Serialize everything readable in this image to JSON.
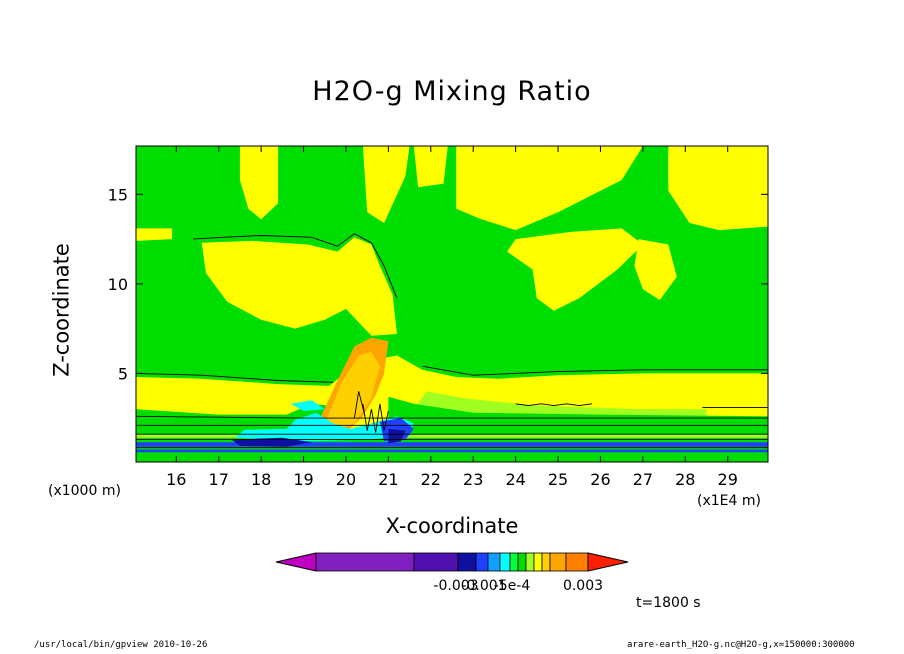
{
  "chart_data": {
    "type": "heatmap",
    "title": "H2O-g Mixing Ratio",
    "xlabel": "X-coordinate",
    "ylabel": "Z-coordinate",
    "x_unit_label": "(x1E4 m)",
    "z_unit_label": "(x1000 m)",
    "x_ticks": [
      16,
      17,
      18,
      19,
      20,
      21,
      22,
      23,
      24,
      25,
      26,
      27,
      28,
      29
    ],
    "z_ticks": [
      5,
      10,
      15
    ],
    "xlim": [
      15.05,
      29.95
    ],
    "zlim": [
      0.05,
      17.7
    ],
    "colorbar": {
      "labels": [
        "-0.003",
        "-0.001",
        "-5e-4",
        "0.003"
      ],
      "colors": [
        "#c000c0",
        "#8020c0",
        "#5010b0",
        "#1010a0",
        "#2040ff",
        "#10a0ff",
        "#00ffff",
        "#00ff40",
        "#00dd00",
        "#a0ff20",
        "#ffff00",
        "#ffd000",
        "#ffa500",
        "#ff8000",
        "#ff2000"
      ]
    },
    "time_label": "t=1800 s",
    "regions": [
      {
        "color": "#00dd00",
        "polygons": [
          [
            [
              15.05,
              0.05
            ],
            [
              29.95,
              0.05
            ],
            [
              29.95,
              17.7
            ],
            [
              15.05,
              17.7
            ]
          ]
        ]
      },
      {
        "color": "#ffff00",
        "polygons": [
          [
            [
              17.5,
              17.7
            ],
            [
              18.4,
              17.7
            ],
            [
              18.4,
              14.5
            ],
            [
              18.0,
              13.6
            ],
            [
              17.7,
              14.2
            ],
            [
              17.5,
              15.8
            ]
          ],
          [
            [
              20.4,
              17.7
            ],
            [
              21.5,
              17.7
            ],
            [
              21.4,
              16.0
            ],
            [
              20.9,
              13.4
            ],
            [
              20.5,
              14.0
            ]
          ],
          [
            [
              21.6,
              17.7
            ],
            [
              22.4,
              17.7
            ],
            [
              22.3,
              15.6
            ],
            [
              21.7,
              15.4
            ]
          ],
          [
            [
              22.6,
              17.7
            ],
            [
              27.0,
              17.7
            ],
            [
              26.5,
              15.8
            ],
            [
              25.0,
              14.0
            ],
            [
              24.0,
              13.0
            ],
            [
              23.2,
              13.6
            ],
            [
              22.6,
              14.2
            ]
          ],
          [
            [
              27.6,
              17.7
            ],
            [
              29.95,
              17.7
            ],
            [
              29.95,
              13.2
            ],
            [
              28.8,
              13.0
            ],
            [
              28.1,
              13.4
            ],
            [
              27.6,
              15.2
            ]
          ],
          [
            [
              24.0,
              12.5
            ],
            [
              25.3,
              12.9
            ],
            [
              26.5,
              13.1
            ],
            [
              27.0,
              12.2
            ],
            [
              26.4,
              10.8
            ],
            [
              25.5,
              9.2
            ],
            [
              24.9,
              8.5
            ],
            [
              24.5,
              9.2
            ],
            [
              24.4,
              10.8
            ],
            [
              23.8,
              11.8
            ]
          ],
          [
            [
              26.9,
              12.5
            ],
            [
              27.6,
              12.2
            ],
            [
              27.8,
              10.4
            ],
            [
              27.4,
              9.1
            ],
            [
              27.0,
              9.7
            ],
            [
              26.8,
              11.0
            ]
          ],
          [
            [
              15.05,
              13.1
            ],
            [
              15.9,
              13.1
            ],
            [
              15.9,
              12.5
            ],
            [
              15.05,
              12.4
            ]
          ],
          [
            [
              16.6,
              12.3
            ],
            [
              17.8,
              12.4
            ],
            [
              19.1,
              12.2
            ],
            [
              19.8,
              11.8
            ],
            [
              20.2,
              12.6
            ],
            [
              20.6,
              12.2
            ],
            [
              20.8,
              11.0
            ],
            [
              21.1,
              9.4
            ],
            [
              21.2,
              7.2
            ],
            [
              20.6,
              7.1
            ],
            [
              20.0,
              8.6
            ],
            [
              19.5,
              8.0
            ],
            [
              18.8,
              7.5
            ],
            [
              18.0,
              8.0
            ],
            [
              17.2,
              9.0
            ],
            [
              16.7,
              10.6
            ]
          ],
          [
            [
              15.05,
              4.8
            ],
            [
              16.6,
              4.7
            ],
            [
              18.4,
              4.4
            ],
            [
              19.6,
              4.3
            ],
            [
              20.3,
              5.6
            ],
            [
              21.2,
              6.0
            ],
            [
              21.8,
              5.2
            ],
            [
              22.6,
              4.8
            ],
            [
              23.6,
              4.7
            ],
            [
              25.0,
              4.9
            ],
            [
              27.0,
              5.0
            ],
            [
              29.95,
              5.0
            ],
            [
              29.95,
              1.8
            ],
            [
              15.05,
              1.8
            ]
          ]
        ]
      },
      {
        "color": "#a0ff20",
        "polygons": [
          [
            [
              15.05,
              1.8
            ],
            [
              29.95,
              1.8
            ],
            [
              29.95,
              1.4
            ],
            [
              15.05,
              1.4
            ]
          ],
          [
            [
              21.9,
              4.0
            ],
            [
              22.8,
              3.6
            ],
            [
              24.5,
              3.2
            ],
            [
              27.0,
              3.0
            ],
            [
              28.5,
              3.0
            ],
            [
              28.5,
              2.4
            ],
            [
              24.5,
              2.5
            ],
            [
              22.4,
              2.6
            ],
            [
              21.6,
              3.0
            ]
          ]
        ]
      },
      {
        "color": "#00dd00",
        "polygons": [
          [
            [
              15.05,
              3.0
            ],
            [
              17.0,
              2.7
            ],
            [
              18.6,
              2.7
            ],
            [
              19.2,
              3.3
            ],
            [
              19.6,
              3.2
            ],
            [
              19.4,
              2.3
            ],
            [
              19.0,
              1.6
            ],
            [
              15.05,
              1.6
            ]
          ],
          [
            [
              21.0,
              3.7
            ],
            [
              21.6,
              3.3
            ],
            [
              23.0,
              2.8
            ],
            [
              26.0,
              2.7
            ],
            [
              29.95,
              2.6
            ],
            [
              29.95,
              1.6
            ],
            [
              21.0,
              1.6
            ]
          ]
        ]
      },
      {
        "color": "#ffa500",
        "polygons": [
          [
            [
              19.2,
              1.5
            ],
            [
              19.8,
              4.6
            ],
            [
              20.2,
              6.5
            ],
            [
              20.6,
              7.0
            ],
            [
              21.0,
              6.8
            ],
            [
              20.9,
              5.0
            ],
            [
              20.7,
              3.8
            ],
            [
              20.4,
              2.6
            ],
            [
              20.0,
              1.7
            ]
          ]
        ]
      },
      {
        "color": "#ffd000",
        "polygons": [
          [
            [
              19.4,
              1.6
            ],
            [
              19.9,
              4.5
            ],
            [
              20.3,
              6.0
            ],
            [
              20.6,
              6.2
            ],
            [
              20.8,
              5.4
            ],
            [
              20.6,
              3.6
            ],
            [
              20.2,
              2.2
            ]
          ]
        ]
      },
      {
        "color": "#00ffff",
        "polygons": [
          [
            [
              17.4,
              1.4
            ],
            [
              17.6,
              1.85
            ],
            [
              18.6,
              1.9
            ],
            [
              18.8,
              2.4
            ],
            [
              19.3,
              2.8
            ],
            [
              19.7,
              2.2
            ],
            [
              20.1,
              1.9
            ],
            [
              20.6,
              2.2
            ],
            [
              21.2,
              2.6
            ],
            [
              21.6,
              2.2
            ],
            [
              21.5,
              1.5
            ],
            [
              20.5,
              1.3
            ],
            [
              19.0,
              1.2
            ]
          ],
          [
            [
              18.7,
              3.3
            ],
            [
              19.2,
              3.5
            ],
            [
              19.5,
              3.0
            ],
            [
              19.0,
              2.9
            ]
          ]
        ]
      },
      {
        "color": "#2040ff",
        "polygons": [
          [
            [
              15.05,
              1.15
            ],
            [
              29.95,
              1.15
            ],
            [
              29.95,
              0.9
            ],
            [
              15.05,
              0.9
            ]
          ],
          [
            [
              20.8,
              2.3
            ],
            [
              21.3,
              2.5
            ],
            [
              21.6,
              1.9
            ],
            [
              21.4,
              1.3
            ],
            [
              20.9,
              1.2
            ]
          ]
        ]
      },
      {
        "color": "#1010a0",
        "polygons": [
          [
            [
              17.3,
              1.3
            ],
            [
              18.5,
              1.4
            ],
            [
              19.2,
              1.15
            ],
            [
              18.6,
              0.9
            ],
            [
              17.5,
              0.95
            ]
          ],
          [
            [
              21.0,
              1.9
            ],
            [
              21.4,
              1.8
            ],
            [
              21.3,
              1.2
            ],
            [
              21.0,
              1.1
            ]
          ]
        ]
      },
      {
        "color": "#00dd00",
        "polygons": [
          [
            [
              15.05,
              0.05
            ],
            [
              29.95,
              0.05
            ],
            [
              29.95,
              0.6
            ],
            [
              15.05,
              0.6
            ]
          ]
        ]
      },
      {
        "color": "#2040ff",
        "polygons": [
          [
            [
              15.05,
              0.6
            ],
            [
              29.95,
              0.6
            ],
            [
              29.95,
              0.75
            ],
            [
              15.05,
              0.75
            ]
          ]
        ]
      }
    ],
    "contour_lines": [
      [
        [
          16.4,
          12.5
        ],
        [
          17.1,
          12.6
        ],
        [
          18.0,
          12.7
        ],
        [
          19.2,
          12.6
        ],
        [
          19.8,
          12.1
        ],
        [
          20.2,
          12.8
        ],
        [
          20.6,
          12.3
        ],
        [
          20.9,
          11.0
        ],
        [
          21.2,
          9.2
        ]
      ],
      [
        [
          15.05,
          5.0
        ],
        [
          16.6,
          4.9
        ],
        [
          18.4,
          4.6
        ],
        [
          19.7,
          4.5
        ]
      ],
      [
        [
          21.8,
          5.4
        ],
        [
          23.0,
          4.9
        ],
        [
          25.0,
          5.1
        ],
        [
          27.0,
          5.2
        ],
        [
          29.95,
          5.2
        ]
      ],
      [
        [
          15.05,
          2.6
        ],
        [
          19.0,
          2.5
        ],
        [
          21.0,
          2.5
        ],
        [
          29.95,
          2.5
        ]
      ],
      [
        [
          15.05,
          2.1
        ],
        [
          29.95,
          2.1
        ]
      ],
      [
        [
          15.05,
          1.6
        ],
        [
          29.95,
          1.6
        ]
      ],
      [
        [
          15.05,
          1.3
        ],
        [
          29.95,
          1.3
        ]
      ],
      [
        [
          15.05,
          0.85
        ],
        [
          29.95,
          0.85
        ]
      ],
      [
        [
          20.4,
          3.3
        ],
        [
          20.5,
          1.8
        ],
        [
          20.6,
          3.0
        ],
        [
          20.7,
          1.7
        ],
        [
          20.8,
          3.3
        ],
        [
          20.9,
          1.8
        ],
        [
          21.0,
          2.9
        ]
      ],
      [
        [
          20.2,
          2.5
        ],
        [
          20.3,
          4.0
        ],
        [
          20.45,
          2.6
        ]
      ],
      [
        [
          24.0,
          3.3
        ],
        [
          24.3,
          3.2
        ],
        [
          24.6,
          3.3
        ],
        [
          24.9,
          3.2
        ],
        [
          25.2,
          3.3
        ],
        [
          25.5,
          3.2
        ],
        [
          25.8,
          3.3
        ]
      ],
      [
        [
          28.4,
          3.1
        ],
        [
          29.95,
          3.1
        ]
      ]
    ]
  },
  "footer_left": "/usr/local/bin/gpview  2010-10-26",
  "footer_right": "arare-earth_H2O-g.nc@H2O-g,x=150000:300000"
}
